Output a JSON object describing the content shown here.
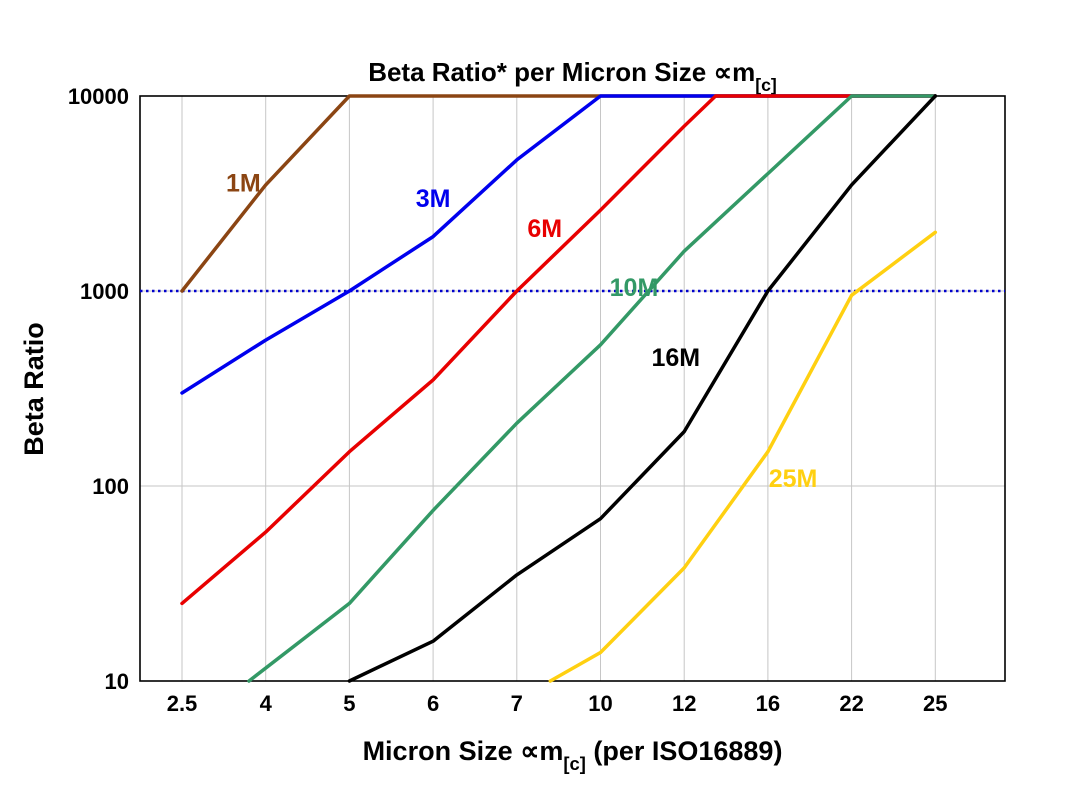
{
  "chart_data": {
    "type": "line",
    "title": {
      "main": "Beta Ratio* per Micron Size ",
      "symbol": "∝m",
      "sub": "[c]"
    },
    "xlabel": {
      "pre": "Micron Size ",
      "symbol": "∝m",
      "sub": "[c]",
      "post": " (per ISO16889)"
    },
    "ylabel": "Beta Ratio",
    "x_categories": [
      2.5,
      4,
      5,
      6,
      7,
      10,
      12,
      16,
      22,
      25
    ],
    "x_tick_labels": [
      "2.5",
      "4",
      "5",
      "6",
      "7",
      "10",
      "12",
      "16",
      "22",
      "25"
    ],
    "y_scale": "log",
    "ylim": [
      10,
      10000
    ],
    "y_ticks": [
      10,
      100,
      1000,
      10000
    ],
    "y_tick_labels": [
      "10",
      "100",
      "1000",
      "10000"
    ],
    "grid": true,
    "gridline_color": "#c6c6c6",
    "border_color": "#000000",
    "reference_line": {
      "value": 1000,
      "color": "#0000cc",
      "style": "dotted"
    },
    "series": [
      {
        "name": "1M",
        "color": "#8B4513",
        "label": {
          "text": "1M",
          "micron": 3.6,
          "beta": 3600
        },
        "points": [
          [
            2.5,
            1000
          ],
          [
            4,
            3500
          ],
          [
            5,
            10000
          ],
          [
            25,
            10000
          ]
        ]
      },
      {
        "name": "3M",
        "color": "#0000EE",
        "label": {
          "text": "3M",
          "micron": 6.0,
          "beta": 3000
        },
        "points": [
          [
            2.5,
            300
          ],
          [
            4,
            560
          ],
          [
            5,
            1000
          ],
          [
            6,
            1900
          ],
          [
            7,
            4700
          ],
          [
            10,
            10000
          ],
          [
            25,
            10000
          ]
        ]
      },
      {
        "name": "6M",
        "color": "#E80000",
        "label": {
          "text": "6M",
          "micron": 8.0,
          "beta": 2100
        },
        "points": [
          [
            2.5,
            25
          ],
          [
            4,
            58
          ],
          [
            5,
            150
          ],
          [
            6,
            350
          ],
          [
            7,
            1000
          ],
          [
            10,
            2600
          ],
          [
            12,
            7000
          ],
          [
            13.5,
            10000
          ],
          [
            25,
            10000
          ]
        ]
      },
      {
        "name": "10M",
        "color": "#339966",
        "label": {
          "text": "10M",
          "micron": 10.8,
          "beta": 1050
        },
        "points": [
          [
            3.7,
            10
          ],
          [
            5,
            25
          ],
          [
            6,
            75
          ],
          [
            7,
            210
          ],
          [
            10,
            530
          ],
          [
            12,
            1600
          ],
          [
            16,
            4000
          ],
          [
            22,
            10000
          ],
          [
            25,
            10000
          ]
        ]
      },
      {
        "name": "16M",
        "color": "#000000",
        "label": {
          "text": "16M",
          "micron": 11.8,
          "beta": 460
        },
        "points": [
          [
            5,
            10
          ],
          [
            6,
            16
          ],
          [
            7,
            35
          ],
          [
            10,
            68
          ],
          [
            12,
            190
          ],
          [
            16,
            1000
          ],
          [
            22,
            3500
          ],
          [
            25,
            10000
          ]
        ]
      },
      {
        "name": "25M",
        "color": "#FFD011",
        "label": {
          "text": "25M",
          "micron": 17.8,
          "beta": 110
        },
        "points": [
          [
            8.2,
            10
          ],
          [
            10,
            14
          ],
          [
            12,
            38
          ],
          [
            16,
            150
          ],
          [
            22,
            950
          ],
          [
            25,
            2000
          ]
        ]
      }
    ]
  }
}
